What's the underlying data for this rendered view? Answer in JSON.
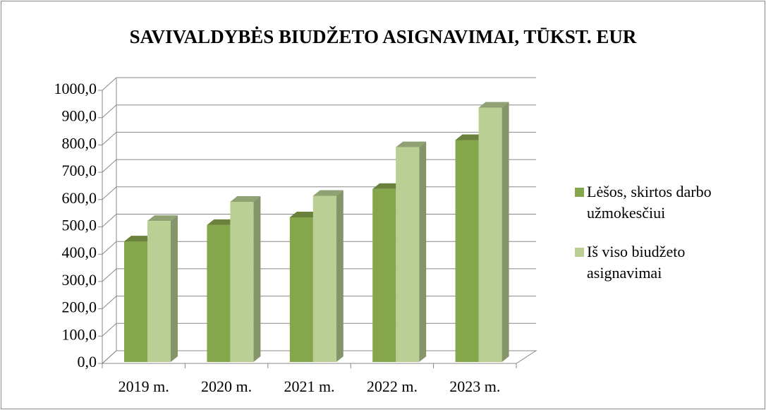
{
  "chart_data": {
    "type": "bar3d",
    "title": "SAVIVALDYBĖS BIUDŽETO ASIGNAVIMAI, TŪKST. EUR",
    "categories": [
      "2019 m.",
      "2020 m.",
      "2021 m.",
      "2022 m.",
      "2023 m."
    ],
    "series": [
      {
        "name": "Lėšos, skirtos darbo užmokesčiui",
        "color": "#86a64b",
        "values": [
          470,
          530,
          558,
          662,
          841
        ]
      },
      {
        "name": "Iš viso biudžeto asignavimai",
        "color": "#b9cf93",
        "values": [
          545,
          615,
          637,
          815,
          960
        ]
      }
    ],
    "ylim": [
      0,
      1000
    ],
    "yticks": [
      {
        "value": 0,
        "label": "0,0"
      },
      {
        "value": 100,
        "label": "100,0"
      },
      {
        "value": 200,
        "label": "200,0"
      },
      {
        "value": 300,
        "label": "300,0"
      },
      {
        "value": 400,
        "label": "400,0"
      },
      {
        "value": 500,
        "label": "500,0"
      },
      {
        "value": 600,
        "label": "600,0"
      },
      {
        "value": 700,
        "label": "700,0"
      },
      {
        "value": 800,
        "label": "800,0"
      },
      {
        "value": 900,
        "label": "900,0"
      },
      {
        "value": 1000,
        "label": "1000,0"
      }
    ],
    "grid": true,
    "legend": "right"
  }
}
